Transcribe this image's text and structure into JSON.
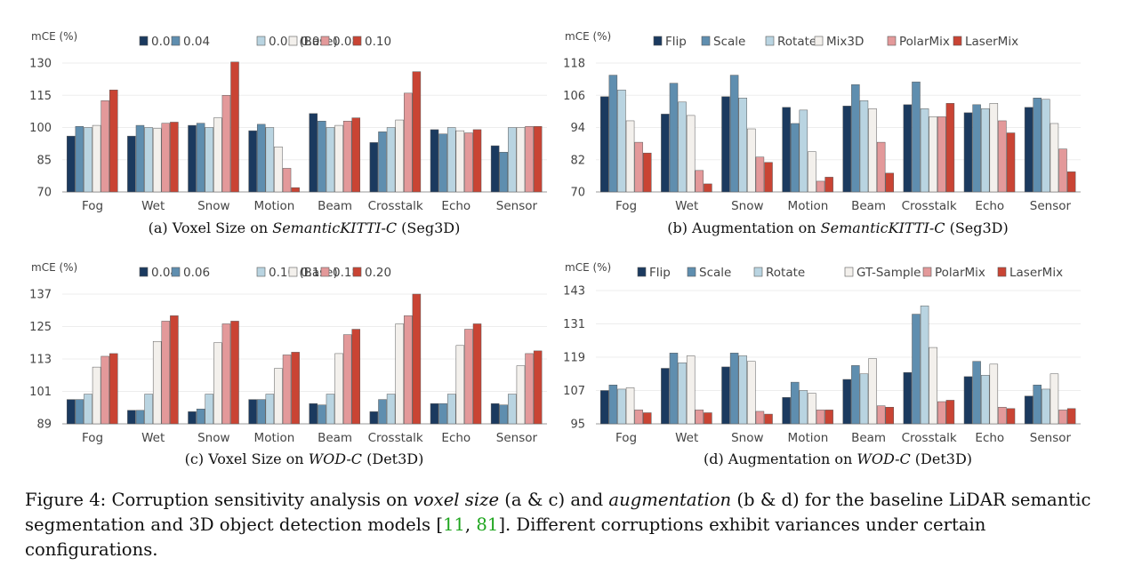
{
  "colors": {
    "navy": "#1b3a5f",
    "steel": "#5f8eaf",
    "lightblue": "#b9d4e1",
    "offwhite": "#f3f0ec",
    "pink": "#e3999a",
    "red": "#c94434",
    "axis": "#9a9a9a"
  },
  "caption": {
    "label": "Figure 4:",
    "t1": " Corruption sensitivity analysis on ",
    "em1": "voxel size",
    "t2": " (a & c) and ",
    "em2": "augmentation",
    "t3": " (b & d) for the baseline LiDAR semantic segmentation and 3D object detection models [",
    "ref1": "11",
    "sep": ", ",
    "ref2": "81",
    "t4": "]. Different corruptions exhibit variances under certain configurations."
  },
  "chart_data": [
    {
      "id": "a",
      "type": "bar",
      "ylabel": "mCE (%)",
      "yticks": [
        70,
        85,
        100,
        115,
        130
      ],
      "ylim": [
        70,
        130
      ],
      "categories": [
        "Fog",
        "Wet",
        "Snow",
        "Motion",
        "Beam",
        "Crosstalk",
        "Echo",
        "Sensor"
      ],
      "caption_parts": [
        "(a)  Voxel Size on ",
        "SemanticKITTI-C",
        " (Seg3D)"
      ],
      "series": [
        {
          "name": "0.03",
          "values": [
            96,
            96,
            101,
            98.5,
            106.5,
            93,
            99,
            91.5
          ]
        },
        {
          "name": "0.04",
          "values": [
            100.5,
            101,
            102,
            101.5,
            103,
            98,
            97,
            88.5
          ]
        },
        {
          "name": "0.05 (Base)",
          "values": [
            100,
            100,
            100,
            100,
            100,
            100,
            100,
            100
          ]
        },
        {
          "name": "0.06",
          "values": [
            101,
            99.5,
            104.5,
            91,
            101,
            103.5,
            98.5,
            100
          ]
        },
        {
          "name": "0.08",
          "values": [
            112.5,
            102,
            115,
            81,
            103,
            116,
            97.5,
            100.5
          ]
        },
        {
          "name": "0.10",
          "values": [
            117.5,
            102.5,
            130.5,
            72,
            104.5,
            126,
            99,
            100.5
          ]
        }
      ]
    },
    {
      "id": "b",
      "type": "bar",
      "ylabel": "mCE (%)",
      "yticks": [
        70,
        82,
        94,
        106,
        118
      ],
      "ylim": [
        70,
        118
      ],
      "categories": [
        "Fog",
        "Wet",
        "Snow",
        "Motion",
        "Beam",
        "Crosstalk",
        "Echo",
        "Sensor"
      ],
      "caption_parts": [
        "(b)  Augmentation on ",
        "SemanticKITTI-C",
        " (Seg3D)"
      ],
      "series": [
        {
          "name": "Flip",
          "values": [
            105.5,
            99,
            105.5,
            101.5,
            102,
            102.5,
            99.5,
            101.5
          ]
        },
        {
          "name": "Scale",
          "values": [
            113.5,
            110.5,
            113.5,
            95.5,
            110,
            111,
            102.5,
            105
          ]
        },
        {
          "name": "Rotate",
          "values": [
            108,
            103.5,
            105,
            100.5,
            104,
            101,
            101,
            104.5
          ]
        },
        {
          "name": "Mix3D",
          "values": [
            96.5,
            98.5,
            93.5,
            85,
            101,
            98,
            103,
            95.5
          ]
        },
        {
          "name": "PolarMix",
          "values": [
            88.5,
            78,
            83,
            74,
            88.5,
            98,
            96.5,
            86
          ]
        },
        {
          "name": "LaserMix",
          "values": [
            84.5,
            73,
            81,
            75.5,
            77,
            103,
            92,
            77.5
          ]
        }
      ]
    },
    {
      "id": "c",
      "type": "bar",
      "ylabel": "mCE (%)",
      "yticks": [
        89,
        101,
        113,
        125,
        137
      ],
      "ylim": [
        89,
        137
      ],
      "categories": [
        "Fog",
        "Wet",
        "Snow",
        "Motion",
        "Beam",
        "Crosstalk",
        "Echo",
        "Sensor"
      ],
      "caption_parts": [
        "(c)  Voxel Size on ",
        "WOD-C",
        " (Det3D)"
      ],
      "series": [
        {
          "name": "0.04",
          "values": [
            98,
            94,
            93.5,
            98,
            96.5,
            93.5,
            96.5,
            96.5
          ]
        },
        {
          "name": "0.06",
          "values": [
            98,
            94,
            94.5,
            98,
            96,
            98,
            96.5,
            96
          ]
        },
        {
          "name": "0.10 (Base)",
          "values": [
            100,
            100,
            100,
            100,
            100,
            100,
            100,
            100
          ]
        },
        {
          "name": "0.16",
          "values": [
            110,
            119.5,
            119,
            109.5,
            115,
            126,
            118,
            110.5
          ]
        },
        {
          "name": "0.18",
          "values": [
            114,
            127,
            126,
            114.5,
            122,
            129,
            124,
            115
          ]
        },
        {
          "name": "0.20",
          "values": [
            115,
            129,
            127,
            115.5,
            124,
            137,
            126,
            116
          ]
        }
      ]
    },
    {
      "id": "d",
      "type": "bar",
      "ylabel": "mCE (%)",
      "yticks": [
        95,
        107,
        119,
        131,
        143
      ],
      "ylim": [
        95,
        143
      ],
      "categories": [
        "Fog",
        "Wet",
        "Snow",
        "Motion",
        "Beam",
        "Crosstalk",
        "Echo",
        "Sensor"
      ],
      "caption_parts": [
        "(d)  Augmentation on ",
        "WOD-C",
        " (Det3D)"
      ],
      "series": [
        {
          "name": "Flip",
          "values": [
            107,
            115,
            115.5,
            104.5,
            111,
            113.5,
            112,
            105
          ]
        },
        {
          "name": "Scale",
          "values": [
            109,
            120.5,
            120.5,
            110,
            116,
            134.5,
            117.5,
            109
          ]
        },
        {
          "name": "Rotate",
          "values": [
            107.5,
            117,
            119.5,
            107,
            113,
            137.5,
            112.5,
            107.5
          ]
        },
        {
          "name": "GT-Sample",
          "values": [
            108,
            119.5,
            117.5,
            106,
            118.5,
            122.5,
            116.5,
            113
          ]
        },
        {
          "name": "PolarMix",
          "values": [
            100,
            100,
            99.5,
            100,
            101.5,
            103,
            101,
            100
          ]
        },
        {
          "name": "LaserMix",
          "values": [
            99,
            99,
            98.5,
            100,
            101,
            103.5,
            100.5,
            100.5
          ]
        }
      ]
    }
  ]
}
